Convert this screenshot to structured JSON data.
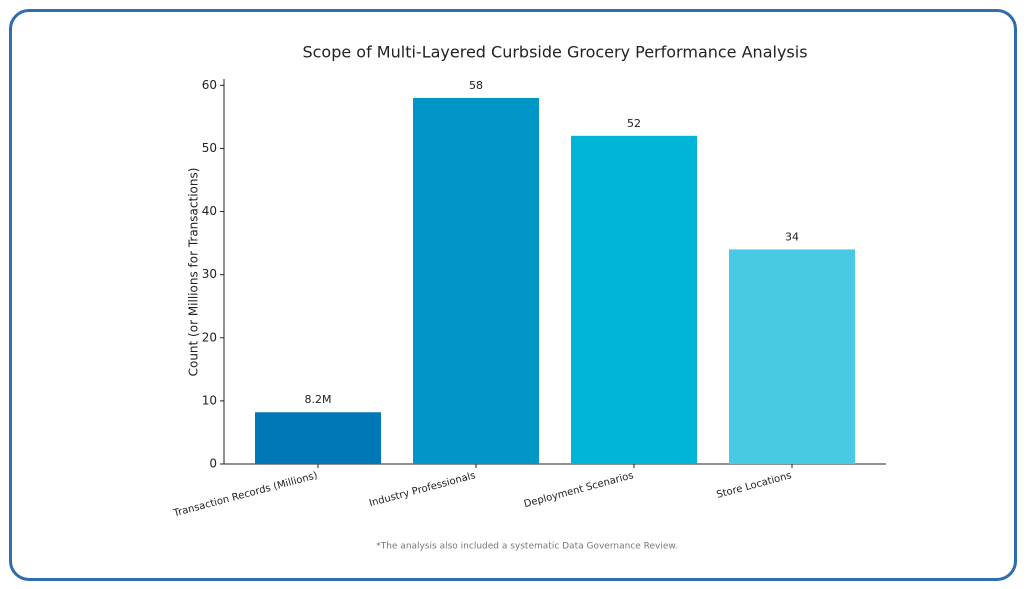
{
  "chart_data": {
    "type": "bar",
    "title": "Scope of Multi-Layered Curbside Grocery Performance Analysis",
    "ylabel": "Count (or Millions for Transactions)",
    "categories": [
      "Transaction Records (Millions)",
      "Industry Professionals",
      "Deployment Scenarios",
      "Store Locations"
    ],
    "values": [
      8.2,
      58,
      52,
      34
    ],
    "value_labels": [
      "8.2M",
      "58",
      "52",
      "34"
    ],
    "colors": [
      "#0077b6",
      "#0096c7",
      "#00b4d8",
      "#48cae4"
    ],
    "ylim": [
      0,
      61
    ],
    "yticks": [
      0,
      10,
      20,
      30,
      40,
      50,
      60
    ],
    "grid": false,
    "footnote": "*The analysis also included a systematic Data Governance Review."
  }
}
